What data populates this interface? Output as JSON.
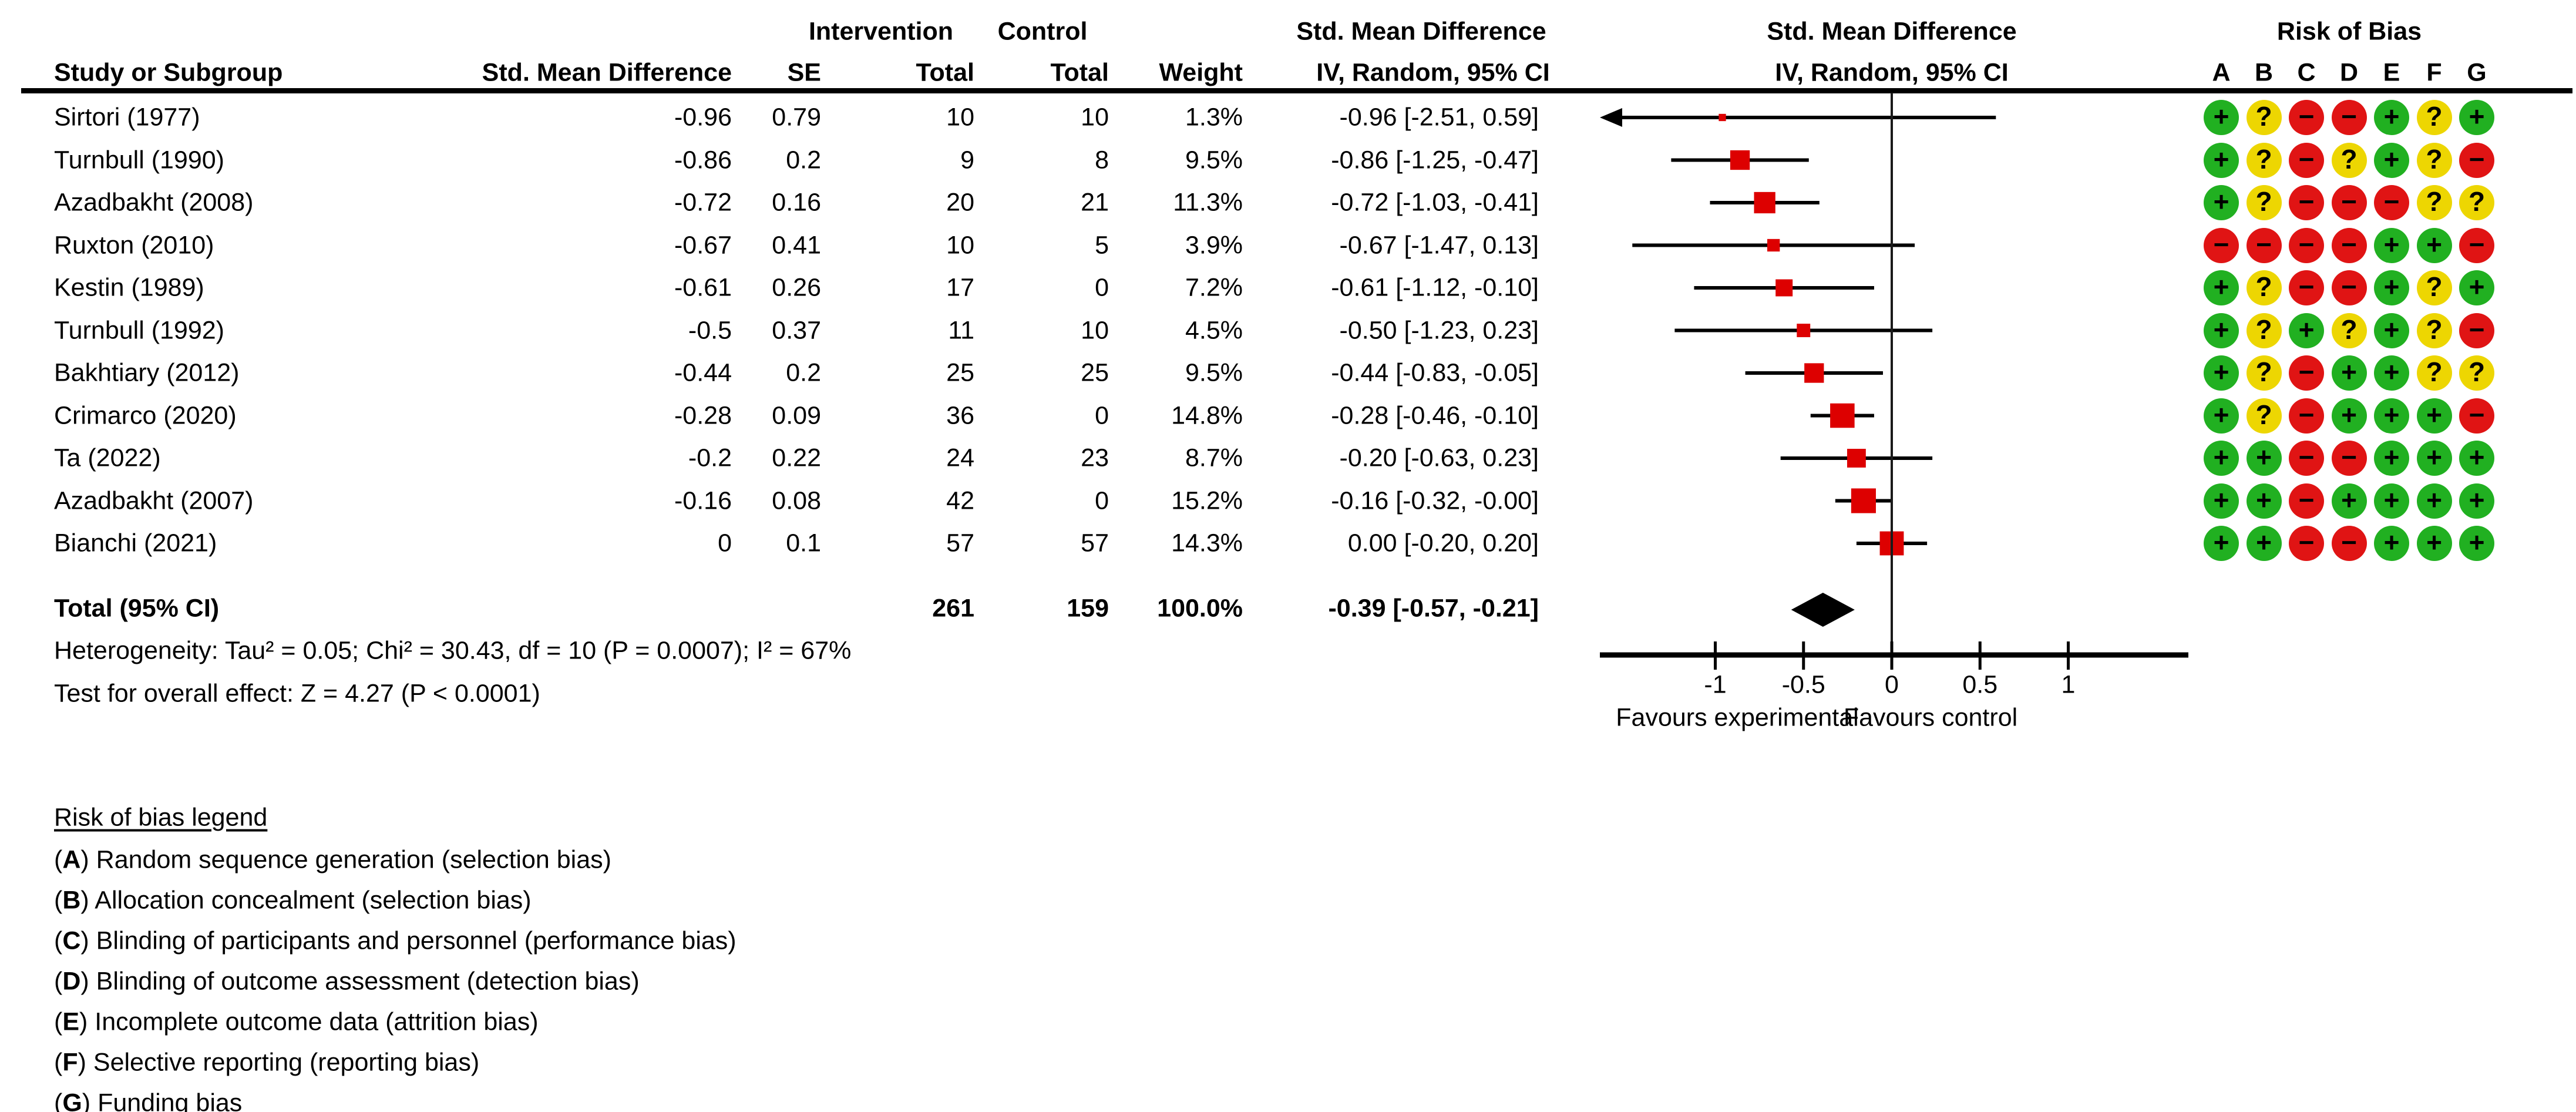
{
  "headers": {
    "group1": {
      "intervention": "Intervention",
      "control": "Control",
      "smd_text_col": "Std. Mean Difference",
      "smd_plot_col": "Std. Mean Difference",
      "risk_of_bias": "Risk of Bias"
    },
    "group2": {
      "study": "Study or Subgroup",
      "smd": "Std. Mean Difference",
      "se": "SE",
      "total_intervention": "Total",
      "total_control": "Total",
      "weight": "Weight",
      "ci_text_col": "IV, Random, 95% CI",
      "ci_plot_col": "IV, Random, 95% CI",
      "rob_letters": [
        "A",
        "B",
        "C",
        "D",
        "E",
        "F",
        "G"
      ]
    }
  },
  "chart_data": {
    "type": "forest",
    "effect_measure": "Std. Mean Difference, IV, Random, 95% CI",
    "studies": [
      {
        "name": "Sirtori (1977)",
        "smd": "-0.96",
        "se": "0.79",
        "total_i": "10",
        "total_c": "10",
        "weight": "1.3%",
        "ci": "-0.96 [-2.51, 0.59]",
        "est": -0.96,
        "lo": -2.51,
        "hi": 0.59,
        "rob": [
          "+",
          "?",
          "-",
          "-",
          "+",
          "?",
          "+"
        ]
      },
      {
        "name": "Turnbull (1990)",
        "smd": "-0.86",
        "se": "0.2",
        "total_i": "9",
        "total_c": "8",
        "weight": "9.5%",
        "ci": "-0.86 [-1.25, -0.47]",
        "est": -0.86,
        "lo": -1.25,
        "hi": -0.47,
        "rob": [
          "+",
          "?",
          "-",
          "?",
          "+",
          "?",
          "-"
        ]
      },
      {
        "name": "Azadbakht (2008)",
        "smd": "-0.72",
        "se": "0.16",
        "total_i": "20",
        "total_c": "21",
        "weight": "11.3%",
        "ci": "-0.72 [-1.03, -0.41]",
        "est": -0.72,
        "lo": -1.03,
        "hi": -0.41,
        "rob": [
          "+",
          "?",
          "-",
          "-",
          "-",
          "?",
          "?"
        ]
      },
      {
        "name": "Ruxton (2010)",
        "smd": "-0.67",
        "se": "0.41",
        "total_i": "10",
        "total_c": "5",
        "weight": "3.9%",
        "ci": "-0.67 [-1.47, 0.13]",
        "est": -0.67,
        "lo": -1.47,
        "hi": 0.13,
        "rob": [
          "-",
          "-",
          "-",
          "-",
          "+",
          "+",
          "-"
        ]
      },
      {
        "name": "Kestin (1989)",
        "smd": "-0.61",
        "se": "0.26",
        "total_i": "17",
        "total_c": "0",
        "weight": "7.2%",
        "ci": "-0.61 [-1.12, -0.10]",
        "est": -0.61,
        "lo": -1.12,
        "hi": -0.1,
        "rob": [
          "+",
          "?",
          "-",
          "-",
          "+",
          "?",
          "+"
        ]
      },
      {
        "name": "Turnbull (1992)",
        "smd": "-0.5",
        "se": "0.37",
        "total_i": "11",
        "total_c": "10",
        "weight": "4.5%",
        "ci": "-0.50 [-1.23, 0.23]",
        "est": -0.5,
        "lo": -1.23,
        "hi": 0.23,
        "rob": [
          "+",
          "?",
          "+",
          "?",
          "+",
          "?",
          "-"
        ]
      },
      {
        "name": "Bakhtiary (2012)",
        "smd": "-0.44",
        "se": "0.2",
        "total_i": "25",
        "total_c": "25",
        "weight": "9.5%",
        "ci": "-0.44 [-0.83, -0.05]",
        "est": -0.44,
        "lo": -0.83,
        "hi": -0.05,
        "rob": [
          "+",
          "?",
          "-",
          "+",
          "+",
          "?",
          "?"
        ]
      },
      {
        "name": "Crimarco (2020)",
        "smd": "-0.28",
        "se": "0.09",
        "total_i": "36",
        "total_c": "0",
        "weight": "14.8%",
        "ci": "-0.28 [-0.46, -0.10]",
        "est": -0.28,
        "lo": -0.46,
        "hi": -0.1,
        "rob": [
          "+",
          "?",
          "-",
          "+",
          "+",
          "+",
          "-"
        ]
      },
      {
        "name": "Ta (2022)",
        "smd": "-0.2",
        "se": "0.22",
        "total_i": "24",
        "total_c": "23",
        "weight": "8.7%",
        "ci": "-0.20 [-0.63, 0.23]",
        "est": -0.2,
        "lo": -0.63,
        "hi": 0.23,
        "rob": [
          "+",
          "+",
          "-",
          "-",
          "+",
          "+",
          "+"
        ]
      },
      {
        "name": "Azadbakht (2007)",
        "smd": "-0.16",
        "se": "0.08",
        "total_i": "42",
        "total_c": "0",
        "weight": "15.2%",
        "ci": "-0.16 [-0.32, -0.00]",
        "est": -0.16,
        "lo": -0.32,
        "hi": -0.0,
        "rob": [
          "+",
          "+",
          "-",
          "+",
          "+",
          "+",
          "+"
        ]
      },
      {
        "name": "Bianchi (2021)",
        "smd": "0",
        "se": "0.1",
        "total_i": "57",
        "total_c": "57",
        "weight": "14.3%",
        "ci": "0.00 [-0.20, 0.20]",
        "est": 0.0,
        "lo": -0.2,
        "hi": 0.2,
        "rob": [
          "+",
          "+",
          "-",
          "-",
          "+",
          "+",
          "+"
        ]
      }
    ],
    "total": {
      "label": "Total (95% CI)",
      "total_i": "261",
      "total_c": "159",
      "weight": "100.0%",
      "ci": "-0.39 [-0.57, -0.21]",
      "est": -0.39,
      "lo": -0.57,
      "hi": -0.21
    },
    "stats": {
      "heterogeneity": "Heterogeneity: Tau² = 0.05; Chi² = 30.43, df = 10 (P = 0.0007); I² = 67%",
      "overall_effect": "Test for overall effect: Z = 4.27 (P < 0.0001)"
    },
    "axis": {
      "tick_values": [
        -1,
        -0.5,
        0,
        0.5,
        1
      ],
      "tick_labels": [
        "-1",
        "-0.5",
        "0",
        "0.5",
        "1"
      ],
      "xmin": -1.655,
      "xmax": 1.68,
      "favours_left": "Favours experimental",
      "favours_right": "Favours control"
    }
  },
  "legend": {
    "title": "Risk of bias legend",
    "items": [
      {
        "letter": "A",
        "text": "Random sequence generation (selection bias)"
      },
      {
        "letter": "B",
        "text": "Allocation concealment (selection bias)"
      },
      {
        "letter": "C",
        "text": "Blinding of participants and personnel (performance bias)"
      },
      {
        "letter": "D",
        "text": "Blinding of outcome assessment (detection bias)"
      },
      {
        "letter": "E",
        "text": "Incomplete outcome data (attrition bias)"
      },
      {
        "letter": "F",
        "text": "Selective reporting (reporting bias)"
      },
      {
        "letter": "G",
        "text": "Funding bias"
      }
    ]
  },
  "colors": {
    "square": "#DD0000",
    "ci_line": "#000000",
    "diamond": "#000000",
    "rob_low": "#21B021",
    "rob_unclear": "#EDD602",
    "rob_high": "#E01414"
  }
}
